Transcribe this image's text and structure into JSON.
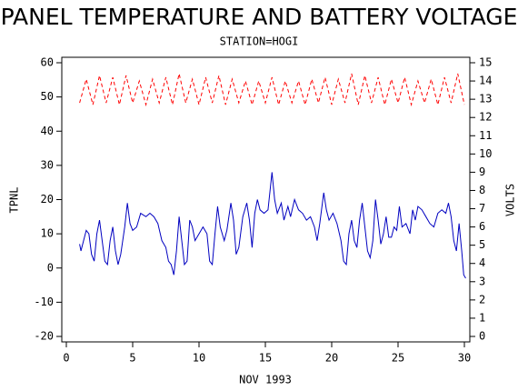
{
  "chart_data": {
    "type": "line",
    "title": "PANEL TEMPERATURE AND BATTERY VOLTAGE",
    "subtitle": "STATION=HOGI",
    "xlabel": "NOV 1993",
    "ylabel": "TPNL",
    "y2label": "VOLTS",
    "xlim": [
      0,
      30
    ],
    "xticks": [
      0,
      5,
      10,
      15,
      20,
      25,
      30
    ],
    "ylim": [
      -20,
      60
    ],
    "yticks": [
      -20,
      -10,
      0,
      10,
      20,
      30,
      40,
      50,
      60
    ],
    "y2lim": [
      0,
      15
    ],
    "y2ticks": [
      0,
      1,
      2,
      3,
      4,
      5,
      6,
      7,
      8,
      9,
      10,
      11,
      12,
      13,
      14,
      15
    ],
    "series": [
      {
        "color": "#0000c0",
        "dash": false,
        "x": [
          1.0,
          1.1,
          1.3,
          1.5,
          1.7,
          1.9,
          2.1,
          2.3,
          2.5,
          2.7,
          2.9,
          3.1,
          3.3,
          3.5,
          3.7,
          3.9,
          4.1,
          4.4,
          4.6,
          4.8,
          5.0,
          5.3,
          5.6,
          6.0,
          6.3,
          6.6,
          6.9,
          7.2,
          7.5,
          7.7,
          7.9,
          8.1,
          8.3,
          8.5,
          8.7,
          8.9,
          9.1,
          9.3,
          9.5,
          9.7,
          10.0,
          10.3,
          10.6,
          10.8,
          11.0,
          11.2,
          11.4,
          11.6,
          11.9,
          12.1,
          12.4,
          12.6,
          12.8,
          13.0,
          13.3,
          13.6,
          13.8,
          14.0,
          14.2,
          14.4,
          14.6,
          14.9,
          15.2,
          15.5,
          15.7,
          15.9,
          16.2,
          16.4,
          16.7,
          16.9,
          17.2,
          17.5,
          17.8,
          18.1,
          18.4,
          18.7,
          18.9,
          19.1,
          19.4,
          19.6,
          19.8,
          20.1,
          20.4,
          20.7,
          20.9,
          21.1,
          21.3,
          21.5,
          21.7,
          21.9,
          22.1,
          22.3,
          22.5,
          22.7,
          22.9,
          23.1,
          23.3,
          23.5,
          23.7,
          23.9,
          24.1,
          24.3,
          24.5,
          24.7,
          24.9,
          25.1,
          25.3,
          25.6,
          25.9,
          26.1,
          26.3,
          26.5,
          26.8,
          27.1,
          27.4,
          27.7,
          28.0,
          28.3,
          28.6,
          28.8,
          29.0,
          29.2,
          29.4,
          29.6,
          29.8,
          29.95,
          30.1
        ],
        "values": [
          7,
          5,
          8,
          11,
          10,
          4,
          2,
          10,
          14,
          8,
          2,
          1,
          8,
          12,
          5,
          1,
          4,
          12,
          19,
          13,
          11,
          12,
          16,
          15,
          16,
          15,
          13,
          8,
          6,
          2,
          1,
          -2,
          5,
          15,
          8,
          1,
          2,
          14,
          12,
          8,
          10,
          12,
          10,
          2,
          1,
          10,
          18,
          12,
          8,
          11,
          19,
          14,
          4,
          6,
          15,
          19,
          14,
          6,
          16,
          20,
          17,
          16,
          17,
          28,
          20,
          16,
          19,
          14,
          18,
          15,
          20,
          17,
          16,
          14,
          15,
          12,
          8,
          13,
          22,
          17,
          14,
          16,
          13,
          8,
          2,
          1,
          10,
          14,
          8,
          6,
          14,
          19,
          12,
          5,
          3,
          8,
          20,
          14,
          7,
          10,
          15,
          9,
          9,
          12,
          11,
          18,
          12,
          13,
          10,
          17,
          14,
          18,
          17,
          15,
          13,
          12,
          16,
          17,
          16,
          19,
          15,
          8,
          5,
          13,
          5,
          -2,
          -3
        ]
      },
      {
        "color": "#ff0000",
        "dash": true,
        "axis": "y2",
        "x": [
          1.0,
          1.5,
          2.0,
          2.5,
          3.0,
          3.5,
          4.0,
          4.5,
          5.0,
          5.5,
          6.0,
          6.5,
          7.0,
          7.5,
          8.0,
          8.5,
          9.0,
          9.5,
          10.0,
          10.5,
          11.0,
          11.5,
          12.0,
          12.5,
          13.0,
          13.5,
          14.0,
          14.5,
          15.0,
          15.5,
          16.0,
          16.5,
          17.0,
          17.5,
          18.0,
          18.5,
          19.0,
          19.5,
          20.0,
          20.5,
          21.0,
          21.5,
          22.0,
          22.5,
          23.0,
          23.5,
          24.0,
          24.5,
          25.0,
          25.5,
          26.0,
          26.5,
          27.0,
          27.5,
          28.0,
          28.5,
          29.0,
          29.5,
          30.0
        ],
        "values": [
          12.8,
          14.1,
          12.7,
          14.3,
          12.8,
          14.2,
          12.7,
          14.3,
          12.8,
          14.0,
          12.7,
          14.1,
          12.8,
          14.2,
          12.7,
          14.4,
          12.8,
          14.1,
          12.7,
          14.2,
          12.8,
          14.3,
          12.7,
          14.1,
          12.8,
          14.0,
          12.7,
          14.0,
          12.8,
          14.2,
          12.7,
          14.0,
          12.8,
          14.0,
          12.7,
          14.1,
          12.8,
          14.2,
          12.7,
          14.1,
          12.8,
          14.4,
          12.7,
          14.3,
          12.8,
          14.2,
          12.7,
          14.1,
          12.8,
          14.2,
          12.7,
          14.0,
          12.8,
          14.1,
          12.7,
          14.2,
          12.8,
          14.4,
          12.7
        ]
      }
    ]
  }
}
